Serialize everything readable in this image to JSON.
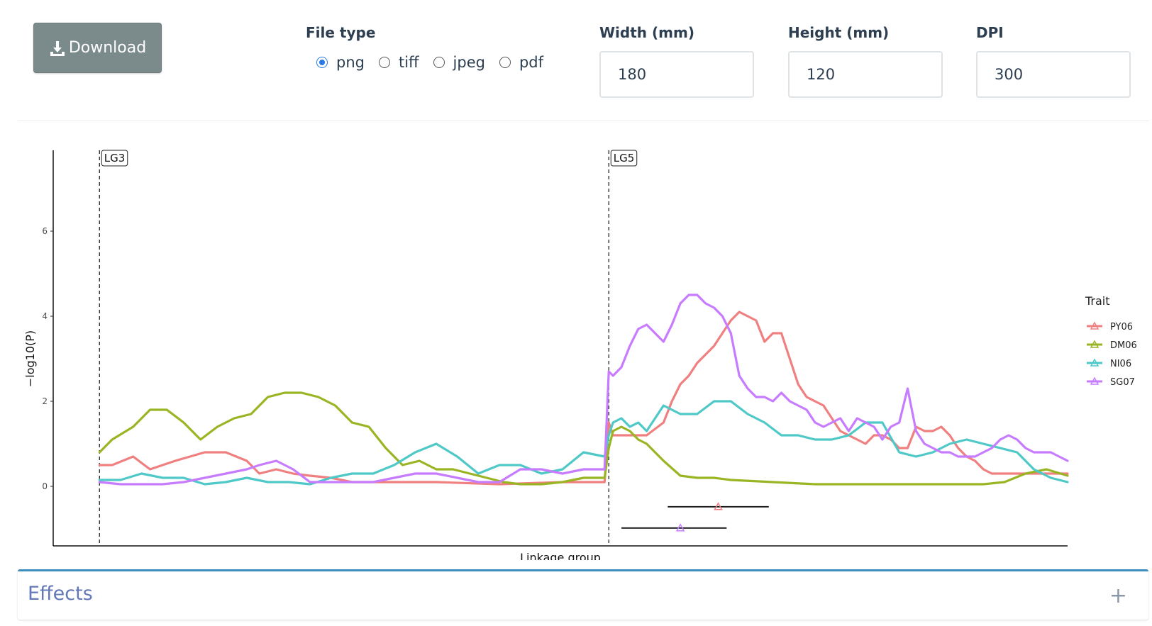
{
  "toolbar": {
    "download_label": "Download",
    "file_type_label": "File type",
    "file_types": [
      "png",
      "tiff",
      "jpeg",
      "pdf"
    ],
    "selected_file_type": "png",
    "width_label": "Width (mm)",
    "width_value": "180",
    "height_label": "Height (mm)",
    "height_value": "120",
    "dpi_label": "DPI",
    "dpi_value": "300"
  },
  "effects_panel": {
    "title": "Effects",
    "toggle_symbol": "+"
  },
  "colors": {
    "accent": "#3c8dbc",
    "button_bg": "#7b8a8b",
    "radio_selected": "#2a7ae2"
  },
  "chart_data": {
    "type": "line",
    "xlabel": "Linkage group",
    "ylabel": "−log10(P)",
    "ylim": [
      -1.4,
      7.9
    ],
    "yticks": [
      0,
      2,
      4,
      6
    ],
    "xlim": [
      -11,
      230
    ],
    "linkage_groups": [
      {
        "name": "LG3",
        "start": 0
      },
      {
        "name": "LG5",
        "start": 121
      }
    ],
    "legend": {
      "title": "Trait",
      "position": "right"
    },
    "series": [
      {
        "name": "PY06",
        "color": "#f08080",
        "x": [
          0,
          3,
          8,
          12,
          18,
          25,
          30,
          35,
          38,
          42,
          46,
          50,
          55,
          60,
          70,
          80,
          95,
          110,
          120,
          121,
          122,
          126,
          130,
          134,
          136,
          138,
          140,
          142,
          144,
          146,
          148,
          150,
          152,
          154,
          156,
          158,
          160,
          162,
          164,
          166,
          168,
          170,
          172,
          174,
          176,
          178,
          180,
          182,
          184,
          186,
          188,
          190,
          192,
          194,
          196,
          198,
          200,
          202,
          204,
          206,
          208,
          210,
          212,
          214,
          216,
          218,
          220,
          222,
          224,
          226,
          228,
          230
        ],
        "y": [
          0.5,
          0.5,
          0.7,
          0.4,
          0.6,
          0.8,
          0.8,
          0.6,
          0.3,
          0.4,
          0.3,
          0.25,
          0.2,
          0.1,
          0.1,
          0.1,
          0.05,
          0.1,
          0.1,
          1.5,
          1.2,
          1.2,
          1.2,
          1.5,
          2.0,
          2.4,
          2.6,
          2.9,
          3.1,
          3.3,
          3.6,
          3.9,
          4.1,
          4.0,
          3.9,
          3.4,
          3.6,
          3.6,
          3.0,
          2.4,
          2.1,
          2.0,
          1.9,
          1.6,
          1.3,
          1.2,
          1.1,
          1.0,
          1.2,
          1.2,
          1.1,
          0.9,
          0.9,
          1.4,
          1.3,
          1.3,
          1.4,
          1.2,
          0.9,
          0.7,
          0.6,
          0.4,
          0.3,
          0.3,
          0.3,
          0.3,
          0.3,
          0.3,
          0.3,
          0.3,
          0.3,
          0.3
        ]
      },
      {
        "name": "DM06",
        "color": "#9ab523",
        "x": [
          0,
          3,
          8,
          12,
          16,
          20,
          24,
          28,
          32,
          36,
          40,
          44,
          48,
          52,
          56,
          60,
          64,
          68,
          72,
          76,
          80,
          84,
          88,
          92,
          96,
          100,
          105,
          110,
          115,
          120,
          121,
          122,
          124,
          126,
          128,
          130,
          134,
          138,
          142,
          146,
          150,
          160,
          170,
          180,
          190,
          200,
          210,
          215,
          220,
          225,
          230
        ],
        "y": [
          0.8,
          1.1,
          1.4,
          1.8,
          1.8,
          1.5,
          1.1,
          1.4,
          1.6,
          1.7,
          2.1,
          2.2,
          2.2,
          2.1,
          1.9,
          1.5,
          1.4,
          0.9,
          0.5,
          0.6,
          0.4,
          0.4,
          0.3,
          0.2,
          0.1,
          0.05,
          0.05,
          0.1,
          0.2,
          0.2,
          0.9,
          1.3,
          1.4,
          1.3,
          1.1,
          1.0,
          0.6,
          0.25,
          0.2,
          0.2,
          0.15,
          0.1,
          0.05,
          0.05,
          0.05,
          0.05,
          0.05,
          0.1,
          0.3,
          0.4,
          0.25
        ]
      },
      {
        "name": "NI06",
        "color": "#4fc8c8",
        "x": [
          0,
          5,
          10,
          15,
          20,
          25,
          30,
          35,
          40,
          45,
          50,
          55,
          60,
          65,
          70,
          75,
          80,
          85,
          90,
          95,
          100,
          105,
          110,
          115,
          120,
          121,
          122,
          124,
          126,
          128,
          130,
          134,
          138,
          142,
          146,
          150,
          154,
          158,
          162,
          166,
          170,
          174,
          178,
          182,
          186,
          190,
          194,
          198,
          202,
          206,
          210,
          214,
          218,
          222,
          226,
          230
        ],
        "y": [
          0.15,
          0.15,
          0.3,
          0.2,
          0.2,
          0.05,
          0.1,
          0.2,
          0.1,
          0.1,
          0.05,
          0.2,
          0.3,
          0.3,
          0.5,
          0.8,
          1.0,
          0.7,
          0.3,
          0.5,
          0.5,
          0.3,
          0.4,
          0.8,
          0.7,
          1.2,
          1.5,
          1.6,
          1.4,
          1.5,
          1.3,
          1.9,
          1.7,
          1.7,
          2.0,
          2.0,
          1.7,
          1.5,
          1.2,
          1.2,
          1.1,
          1.1,
          1.2,
          1.5,
          1.5,
          0.8,
          0.7,
          0.8,
          1.0,
          1.1,
          1.0,
          0.9,
          0.8,
          0.4,
          0.2,
          0.1
        ]
      },
      {
        "name": "SG07",
        "color": "#c77cff",
        "x": [
          0,
          5,
          10,
          15,
          20,
          25,
          30,
          35,
          38,
          42,
          46,
          50,
          55,
          60,
          65,
          70,
          75,
          80,
          85,
          90,
          95,
          100,
          105,
          110,
          115,
          120,
          121,
          122,
          124,
          126,
          128,
          130,
          132,
          134,
          136,
          138,
          140,
          142,
          144,
          146,
          148,
          150,
          152,
          154,
          156,
          158,
          160,
          162,
          164,
          166,
          168,
          170,
          172,
          174,
          176,
          178,
          180,
          182,
          184,
          186,
          188,
          190,
          192,
          194,
          196,
          198,
          200,
          202,
          204,
          206,
          208,
          210,
          212,
          214,
          216,
          218,
          220,
          222,
          224,
          226,
          228,
          230
        ],
        "y": [
          0.1,
          0.05,
          0.05,
          0.05,
          0.1,
          0.2,
          0.3,
          0.4,
          0.5,
          0.6,
          0.4,
          0.1,
          0.1,
          0.1,
          0.1,
          0.2,
          0.3,
          0.3,
          0.2,
          0.1,
          0.1,
          0.4,
          0.4,
          0.3,
          0.4,
          0.4,
          2.7,
          2.6,
          2.8,
          3.3,
          3.7,
          3.8,
          3.6,
          3.4,
          3.8,
          4.3,
          4.5,
          4.5,
          4.3,
          4.2,
          4.0,
          3.6,
          2.6,
          2.3,
          2.1,
          2.1,
          2.0,
          2.2,
          2.0,
          1.9,
          1.8,
          1.5,
          1.4,
          1.5,
          1.6,
          1.3,
          1.6,
          1.5,
          1.4,
          1.1,
          1.4,
          1.5,
          2.3,
          1.3,
          1.0,
          0.9,
          0.8,
          0.8,
          0.7,
          0.7,
          0.7,
          0.8,
          0.9,
          1.1,
          1.2,
          1.1,
          0.9,
          0.8,
          0.8,
          0.8,
          0.7,
          0.6
        ]
      }
    ],
    "intervals": [
      {
        "trait": "PY06",
        "color": "#f08080",
        "start": 135,
        "end": 159,
        "peak": 147,
        "y": -0.48
      },
      {
        "trait": "SG07",
        "color": "#c77cff",
        "start": 124,
        "end": 149,
        "peak": 138,
        "y": -0.98
      }
    ]
  }
}
